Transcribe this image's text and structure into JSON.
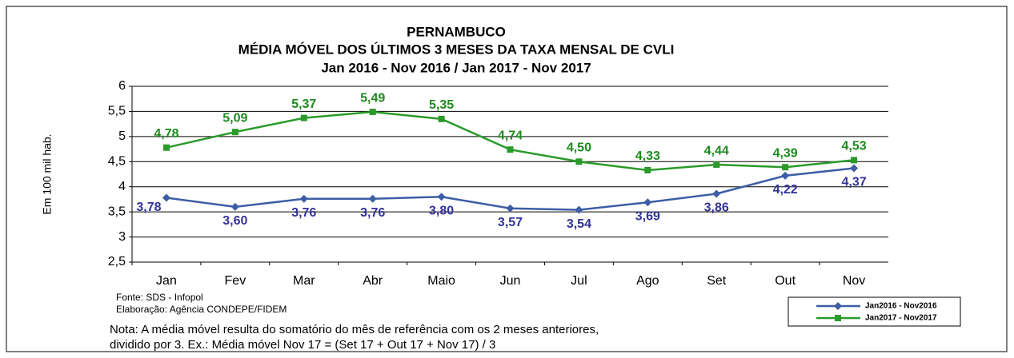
{
  "chart_data": {
    "type": "line",
    "title": [
      "PERNAMBUCO",
      "MÉDIA MÓVEL DOS ÚLTIMOS 3 MESES DA TAXA MENSAL DE CVLI",
      "Jan 2016 - Nov 2016 / Jan 2017 - Nov 2017"
    ],
    "y_label": "Em 100 mil hab.",
    "categories": [
      "Jan",
      "Fev",
      "Mar",
      "Abr",
      "Maio",
      "Jun",
      "Jul",
      "Ago",
      "Set",
      "Out",
      "Nov"
    ],
    "series": [
      {
        "name": "Jan2016 - Nov2016",
        "color": "#3d5da6",
        "label_color": "#333399",
        "marker": "diamond",
        "values": [
          3.78,
          3.6,
          3.76,
          3.76,
          3.8,
          3.57,
          3.54,
          3.69,
          3.86,
          4.22,
          4.37
        ],
        "value_labels": [
          "3,78",
          "3,60",
          "3,76",
          "3,76",
          "3,80",
          "3,57",
          "3,54",
          "3,69",
          "3,86",
          "4,22",
          "4,37"
        ]
      },
      {
        "name": "Jan2017 - Nov2017",
        "color": "#2a9a2a",
        "label_color": "#1d8a1d",
        "marker": "square",
        "values": [
          4.78,
          5.09,
          5.37,
          5.49,
          5.35,
          4.74,
          4.5,
          4.33,
          4.44,
          4.39,
          4.53
        ],
        "value_labels": [
          "4,78",
          "5,09",
          "5,37",
          "5,49",
          "5,35",
          "4,74",
          "4,50",
          "4,33",
          "4,44",
          "4,39",
          "4,53"
        ]
      }
    ],
    "ylim": [
      2.5,
      6
    ],
    "yticks": [
      {
        "value": 2.5,
        "label": "2,5"
      },
      3,
      {
        "value": 3.5,
        "label": "3,5"
      },
      4,
      {
        "value": 4.5,
        "label": "4,5"
      },
      5,
      {
        "value": 5.5,
        "label": "5,5"
      },
      6
    ],
    "grid": true,
    "legend": "bottom-right",
    "notes": [
      "Fonte: SDS - Infopol",
      "Elaboração: Agência  CONDEPE/FIDEM",
      "Nota: A média móvel resulta do somatório do mês de referência com os 2 meses anteriores,",
      "dividido por 3. Ex.: Média móvel Nov 17 = (Set 17 + Out 17 + Nov 17) / 3"
    ]
  }
}
